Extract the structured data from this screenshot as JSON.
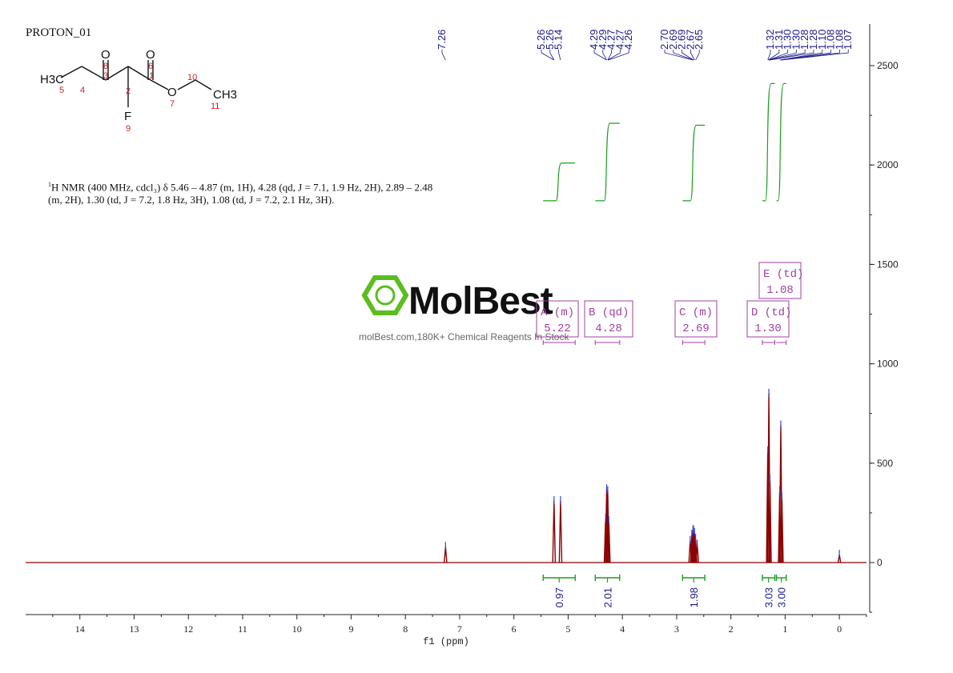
{
  "sample": "PROTON_01",
  "molecule": {
    "atoms": {
      "h3c": "H3C",
      "ch3": "CH3",
      "o_keto": "O",
      "o_ester_co": "O",
      "o_ether": "O",
      "f": "F"
    },
    "numbers": [
      "8",
      "6",
      "3",
      "1",
      "5",
      "4",
      "2",
      "7",
      "10",
      "11",
      "9"
    ]
  },
  "description": {
    "sup": "1",
    "line1": "H NMR (400 MHz, cdcl₃) δ 5.46 – 4.87 (m, 1H), 4.28 (qd, J = 7.1, 1.9 Hz, 2H), 2.89 – 2.48",
    "line2": "(m, 2H), 1.30 (td, J = 7.2, 1.8 Hz, 3H), 1.08 (td, J = 7.2, 2.1 Hz, 3H)."
  },
  "watermark": {
    "brand": "MolBest",
    "tagline": "molBest.com,180K+ Chemical Reagents In Stock"
  },
  "colors": {
    "spectrum": "#8b0000",
    "peak_marker": "#3344cc",
    "integral": "#1f9e1f",
    "peak_label": "#1a1a8c",
    "multiplet_box": "#a040a0",
    "brand": "#5bbd1e"
  },
  "chart_data": {
    "type": "line",
    "xlabel": "f1 (ppm)",
    "xlim": [
      15,
      -0.5
    ],
    "ylim": [
      -500,
      2500
    ],
    "x_ticks": [
      "14",
      "13",
      "12",
      "11",
      "10",
      "9",
      "8",
      "7",
      "6",
      "5",
      "4",
      "3",
      "2",
      "1",
      "0"
    ],
    "y_ticks": [
      "2500",
      "2000",
      "1500",
      "1000",
      "500",
      "0"
    ],
    "peaks": [
      {
        "ppm": 7.26,
        "height": 80
      },
      {
        "ppm": 5.26,
        "height": 310
      },
      {
        "ppm": 5.14,
        "height": 310
      },
      {
        "ppm": 4.31,
        "height": 220
      },
      {
        "ppm": 4.29,
        "height": 370
      },
      {
        "ppm": 4.27,
        "height": 360
      },
      {
        "ppm": 4.25,
        "height": 210
      },
      {
        "ppm": 2.75,
        "height": 110
      },
      {
        "ppm": 2.72,
        "height": 140
      },
      {
        "ppm": 2.7,
        "height": 160
      },
      {
        "ppm": 2.69,
        "height": 165
      },
      {
        "ppm": 2.67,
        "height": 150
      },
      {
        "ppm": 2.65,
        "height": 120
      },
      {
        "ppm": 2.62,
        "height": 90
      },
      {
        "ppm": 1.32,
        "height": 560
      },
      {
        "ppm": 1.3,
        "height": 850
      },
      {
        "ppm": 1.28,
        "height": 420
      },
      {
        "ppm": 1.1,
        "height": 360
      },
      {
        "ppm": 1.08,
        "height": 690
      },
      {
        "ppm": 1.06,
        "height": 330
      },
      {
        "ppm": 0.0,
        "height": 40
      }
    ],
    "peak_labels": [
      {
        "group": [
          "7.26"
        ],
        "ppm": [
          7.26
        ]
      },
      {
        "group": [
          "5.26",
          "5.26",
          "5.14"
        ],
        "ppm": [
          5.26,
          5.26,
          5.14
        ]
      },
      {
        "group": [
          "4.29",
          "4.29",
          "4.27",
          "4.27",
          "4.26"
        ],
        "ppm": [
          4.29,
          4.29,
          4.27,
          4.27,
          4.26
        ]
      },
      {
        "group": [
          "2.70",
          "2.69",
          "2.69",
          "2.67",
          "2.65"
        ],
        "ppm": [
          2.7,
          2.69,
          2.69,
          2.67,
          2.65
        ]
      },
      {
        "group": [
          "1.32",
          "1.31",
          "1.30",
          "1.30",
          "1.28",
          "1.28",
          "1.10",
          "1.08",
          "1.08",
          "1.07"
        ],
        "ppm": [
          1.32,
          1.31,
          1.3,
          1.3,
          1.28,
          1.28,
          1.1,
          1.08,
          1.08,
          1.07
        ]
      }
    ],
    "integrals": [
      {
        "value": "0.97",
        "from": 5.46,
        "to": 4.87
      },
      {
        "value": "2.01",
        "from": 4.5,
        "to": 4.05
      },
      {
        "value": "1.98",
        "from": 2.89,
        "to": 2.48
      },
      {
        "value": "3.03",
        "from": 1.42,
        "to": 1.19
      },
      {
        "value": "3.00",
        "from": 1.16,
        "to": 0.98
      }
    ],
    "multiplets": [
      {
        "label": "A (m)",
        "shift": "5.22",
        "from": 5.46,
        "to": 4.87
      },
      {
        "label": "B (qd)",
        "shift": "4.28",
        "from": 4.5,
        "to": 4.05
      },
      {
        "label": "C (m)",
        "shift": "2.69",
        "from": 2.89,
        "to": 2.48
      },
      {
        "label": "D (td)",
        "shift": "1.30",
        "from": 1.42,
        "to": 1.19
      },
      {
        "label": "E (td)",
        "shift": "1.08",
        "from": 1.16,
        "to": 0.98
      }
    ]
  }
}
